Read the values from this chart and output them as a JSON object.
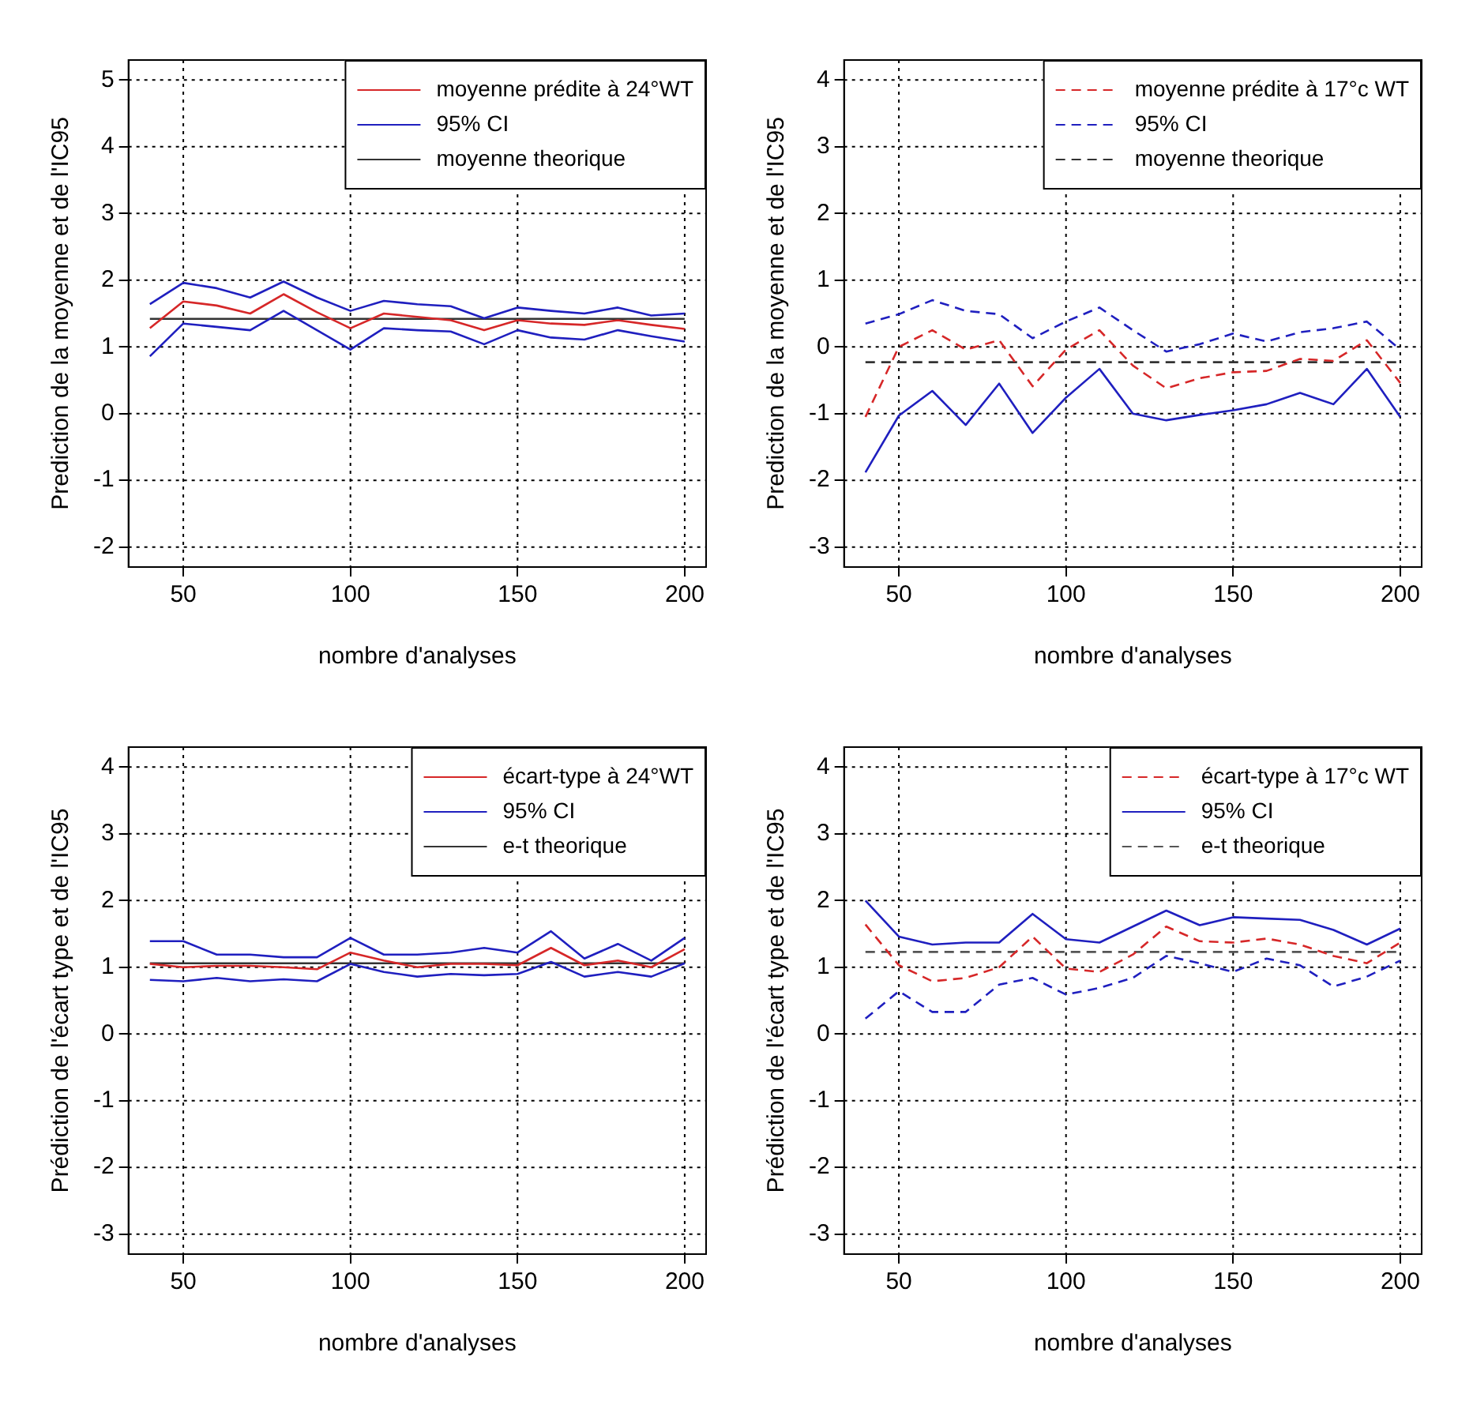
{
  "chart_data": [
    {
      "type": "line",
      "xlabel": "nombre d'analyses",
      "ylabel": "Prediction de la moyenne et de l'IC95",
      "xlim": [
        33.6,
        206.4
      ],
      "xticks": [
        50,
        100,
        150,
        200
      ],
      "ylim": [
        -2.3,
        5.3
      ],
      "yticks": [
        -2,
        -1,
        0,
        1,
        2,
        3,
        4,
        5
      ],
      "grid": true,
      "legend": "top right",
      "marker": "none",
      "x": [
        40,
        50,
        60,
        70,
        80,
        90,
        100,
        110,
        120,
        130,
        140,
        150,
        160,
        170,
        180,
        190,
        200
      ],
      "series": [
        {
          "name": "moyenne prédite à 24°WT",
          "color": "#d62728",
          "line_style": "solid",
          "values": [
            1.28,
            1.68,
            1.62,
            1.5,
            1.79,
            1.52,
            1.28,
            1.5,
            1.45,
            1.4,
            1.25,
            1.4,
            1.35,
            1.33,
            1.4,
            1.33,
            1.27
          ]
        },
        {
          "name": "95% CI",
          "color": "#1f1fbf",
          "line_style": "solid",
          "values": [
            1.64,
            1.96,
            1.88,
            1.74,
            1.98,
            1.74,
            1.54,
            1.69,
            1.64,
            1.61,
            1.43,
            1.59,
            1.54,
            1.5,
            1.59,
            1.47,
            1.5
          ]
        },
        {
          "color": "#1f1fbf",
          "line_style": "solid",
          "values": [
            0.86,
            1.35,
            1.3,
            1.25,
            1.54,
            1.25,
            0.96,
            1.28,
            1.25,
            1.23,
            1.04,
            1.25,
            1.14,
            1.11,
            1.25,
            1.16,
            1.08
          ]
        },
        {
          "name": "moyenne theorique",
          "color": "#333333",
          "line_style": "solid",
          "values": [
            1.42,
            1.42,
            1.42,
            1.42,
            1.42,
            1.42,
            1.42,
            1.42,
            1.42,
            1.42,
            1.42,
            1.42,
            1.42,
            1.42,
            1.42,
            1.42,
            1.42
          ]
        }
      ]
    },
    {
      "type": "line",
      "xlabel": "nombre d'analyses",
      "ylabel": "Prediction de la moyenne et de l'IC95",
      "xlim": [
        33.6,
        206.4
      ],
      "xticks": [
        50,
        100,
        150,
        200
      ],
      "ylim": [
        -3.3,
        4.3
      ],
      "yticks": [
        -3,
        -2,
        -1,
        0,
        1,
        2,
        3,
        4
      ],
      "grid": true,
      "legend": "top right",
      "marker": "none",
      "x": [
        40,
        50,
        60,
        70,
        80,
        90,
        100,
        110,
        120,
        130,
        140,
        150,
        160,
        170,
        180,
        190,
        200
      ],
      "series": [
        {
          "name": "moyenne prédite à 17°c WT",
          "color": "#d62728",
          "line_style": "dashed",
          "values": [
            -1.05,
            0.0,
            0.25,
            -0.04,
            0.1,
            -0.59,
            -0.04,
            0.25,
            -0.28,
            -0.62,
            -0.47,
            -0.38,
            -0.36,
            -0.18,
            -0.21,
            0.1,
            -0.54
          ]
        },
        {
          "name": "95% CI",
          "color": "#1f1fbf",
          "line_style": "dashed",
          "values": [
            0.35,
            0.49,
            0.7,
            0.54,
            0.49,
            0.13,
            0.38,
            0.59,
            0.25,
            -0.07,
            0.04,
            0.2,
            0.08,
            0.22,
            0.28,
            0.38,
            -0.04
          ]
        },
        {
          "color": "#1f1fbf",
          "line_style": "solid",
          "values": [
            -1.88,
            -1.03,
            -0.66,
            -1.17,
            -0.55,
            -1.29,
            -0.76,
            -0.33,
            -1.0,
            -1.1,
            -1.02,
            -0.95,
            -0.86,
            -0.69,
            -0.86,
            -0.33,
            -1.05
          ]
        },
        {
          "name": "moyenne theorique",
          "color": "#333333",
          "line_style": "dashed",
          "values": [
            -0.23,
            -0.23,
            -0.23,
            -0.23,
            -0.23,
            -0.23,
            -0.23,
            -0.23,
            -0.23,
            -0.23,
            -0.23,
            -0.23,
            -0.23,
            -0.23,
            -0.23,
            -0.23,
            -0.23
          ]
        }
      ]
    },
    {
      "type": "line",
      "xlabel": "nombre d'analyses",
      "ylabel": "Prédiction de l'écart type et de l'IC95",
      "xlim": [
        33.6,
        206.4
      ],
      "xticks": [
        50,
        100,
        150,
        200
      ],
      "ylim": [
        -3.3,
        4.3
      ],
      "yticks": [
        -3,
        -2,
        -1,
        0,
        1,
        2,
        3,
        4
      ],
      "grid": true,
      "legend": "top right",
      "marker": "none",
      "x": [
        40,
        50,
        60,
        70,
        80,
        90,
        100,
        110,
        120,
        130,
        140,
        150,
        160,
        170,
        180,
        190,
        200
      ],
      "series": [
        {
          "name": "écart-type à 24°WT",
          "color": "#d62728",
          "line_style": "solid",
          "values": [
            1.05,
            1.0,
            1.02,
            1.02,
            1.0,
            0.97,
            1.22,
            1.1,
            1.0,
            1.05,
            1.05,
            1.03,
            1.29,
            1.03,
            1.1,
            1.0,
            1.27
          ]
        },
        {
          "name": "95% CI",
          "color": "#1f1fbf",
          "line_style": "solid",
          "values": [
            1.39,
            1.39,
            1.19,
            1.19,
            1.15,
            1.15,
            1.44,
            1.19,
            1.19,
            1.22,
            1.29,
            1.22,
            1.54,
            1.13,
            1.35,
            1.1,
            1.44
          ]
        },
        {
          "color": "#1f1fbf",
          "line_style": "solid",
          "values": [
            0.81,
            0.79,
            0.84,
            0.79,
            0.82,
            0.79,
            1.05,
            0.93,
            0.86,
            0.9,
            0.88,
            0.9,
            1.08,
            0.86,
            0.93,
            0.86,
            1.06
          ]
        },
        {
          "name": "e-t theorique",
          "color": "#333333",
          "line_style": "solid",
          "values": [
            1.06,
            1.06,
            1.06,
            1.06,
            1.06,
            1.06,
            1.06,
            1.06,
            1.06,
            1.06,
            1.06,
            1.06,
            1.06,
            1.06,
            1.06,
            1.06,
            1.06
          ]
        }
      ]
    },
    {
      "type": "line",
      "xlabel": "nombre d'analyses",
      "ylabel": "Prédiction de l'écart type et de l'IC95",
      "xlim": [
        33.6,
        206.4
      ],
      "xticks": [
        50,
        100,
        150,
        200
      ],
      "ylim": [
        -3.3,
        4.3
      ],
      "yticks": [
        -3,
        -2,
        -1,
        0,
        1,
        2,
        3,
        4
      ],
      "grid": true,
      "legend": "top right",
      "marker": "none",
      "x": [
        40,
        50,
        60,
        70,
        80,
        90,
        100,
        110,
        120,
        130,
        140,
        150,
        160,
        170,
        180,
        190,
        200
      ],
      "series": [
        {
          "name": "écart-type à 17°c WT",
          "color": "#d62728",
          "line_style": "dashed",
          "values": [
            1.64,
            1.03,
            0.79,
            0.84,
            1.0,
            1.46,
            0.98,
            0.93,
            1.19,
            1.61,
            1.39,
            1.37,
            1.43,
            1.34,
            1.17,
            1.06,
            1.37
          ]
        },
        {
          "name": "95% CI",
          "color": "#1f1fbf",
          "line_style": "solid",
          "values": [
            2.0,
            1.46,
            1.34,
            1.37,
            1.37,
            1.8,
            1.42,
            1.37,
            1.61,
            1.85,
            1.63,
            1.75,
            1.73,
            1.71,
            1.56,
            1.34,
            1.58
          ]
        },
        {
          "color": "#1f1fbf",
          "line_style": "dashed",
          "values": [
            0.23,
            0.64,
            0.33,
            0.33,
            0.74,
            0.84,
            0.59,
            0.69,
            0.84,
            1.17,
            1.06,
            0.93,
            1.13,
            1.03,
            0.71,
            0.86,
            1.1
          ]
        },
        {
          "name": "e-t theorique",
          "color": "#555555",
          "line_style": "dashed",
          "values": [
            1.23,
            1.23,
            1.23,
            1.23,
            1.23,
            1.23,
            1.23,
            1.23,
            1.23,
            1.23,
            1.23,
            1.23,
            1.23,
            1.23,
            1.23,
            1.23,
            1.23
          ]
        }
      ]
    }
  ]
}
